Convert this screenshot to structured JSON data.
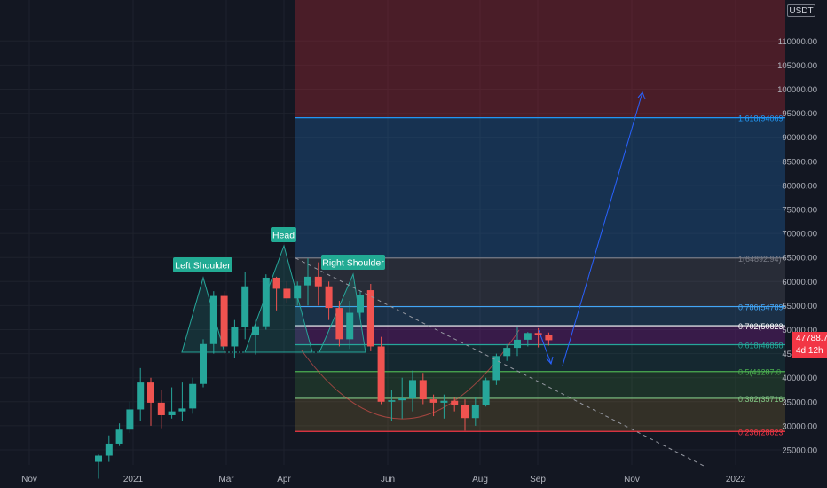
{
  "currency": "USDT",
  "last_price": "47788.75",
  "countdown": "4d 12h",
  "colors": {
    "background": "#131722",
    "up": "#26a69a",
    "down": "#ef5350",
    "text": "#b2b5be",
    "label_bg": "#22ab94"
  },
  "chart_data": {
    "type": "candlestick",
    "y_axis": {
      "min": 20000,
      "max": 115000,
      "step": 5000,
      "tick_labels": [
        "25000.00",
        "30000.00",
        "35000.00",
        "40000.00",
        "45000.00",
        "50000.00",
        "55000.00",
        "60000.00",
        "65000.00",
        "70000.00",
        "75000.00",
        "80000.00",
        "85000.00",
        "90000.00",
        "95000.00",
        "100000.00",
        "105000.00",
        "110000.00"
      ]
    },
    "x_axis": {
      "tick_labels": [
        "Nov",
        "2021",
        "Mar",
        "Apr",
        "Jun",
        "Aug",
        "Sep",
        "Nov",
        "2022"
      ]
    },
    "candles": [
      {
        "o": 22500,
        "h": 24000,
        "l": 19000,
        "c": 23800
      },
      {
        "o": 23800,
        "h": 28000,
        "l": 22500,
        "c": 26300
      },
      {
        "o": 26300,
        "h": 30500,
        "l": 25800,
        "c": 29200
      },
      {
        "o": 29200,
        "h": 35000,
        "l": 28500,
        "c": 33400
      },
      {
        "o": 33400,
        "h": 42000,
        "l": 31000,
        "c": 39000
      },
      {
        "o": 39000,
        "h": 40000,
        "l": 30000,
        "c": 34800
      },
      {
        "o": 34800,
        "h": 37500,
        "l": 29500,
        "c": 32200
      },
      {
        "o": 32200,
        "h": 38000,
        "l": 31500,
        "c": 33000
      },
      {
        "o": 33000,
        "h": 39000,
        "l": 31000,
        "c": 33600
      },
      {
        "o": 33600,
        "h": 40000,
        "l": 32500,
        "c": 38700
      },
      {
        "o": 38700,
        "h": 48000,
        "l": 38000,
        "c": 47000
      },
      {
        "o": 47000,
        "h": 58000,
        "l": 45000,
        "c": 57000
      },
      {
        "o": 57000,
        "h": 58000,
        "l": 45000,
        "c": 46500
      },
      {
        "o": 46500,
        "h": 52000,
        "l": 44000,
        "c": 50500
      },
      {
        "o": 50500,
        "h": 62000,
        "l": 48000,
        "c": 59000
      },
      {
        "o": 48800,
        "h": 52000,
        "l": 44800,
        "c": 50700
      },
      {
        "o": 50700,
        "h": 61500,
        "l": 50000,
        "c": 60800
      },
      {
        "o": 60800,
        "h": 61000,
        "l": 54000,
        "c": 58500
      },
      {
        "o": 58500,
        "h": 60000,
        "l": 55500,
        "c": 56500
      },
      {
        "o": 56500,
        "h": 60000,
        "l": 55000,
        "c": 59200
      },
      {
        "o": 59200,
        "h": 64800,
        "l": 55000,
        "c": 61000
      },
      {
        "o": 61000,
        "h": 64000,
        "l": 55000,
        "c": 59000
      },
      {
        "o": 59000,
        "h": 60000,
        "l": 52000,
        "c": 54500
      },
      {
        "o": 54500,
        "h": 56000,
        "l": 46500,
        "c": 48000
      },
      {
        "o": 48000,
        "h": 56000,
        "l": 46000,
        "c": 53500
      },
      {
        "o": 53500,
        "h": 58000,
        "l": 52000,
        "c": 57200
      },
      {
        "o": 58200,
        "h": 59500,
        "l": 45500,
        "c": 46500
      },
      {
        "o": 46500,
        "h": 48500,
        "l": 34500,
        "c": 35000
      },
      {
        "o": 35000,
        "h": 37500,
        "l": 31000,
        "c": 35300
      },
      {
        "o": 35300,
        "h": 40000,
        "l": 31500,
        "c": 35700
      },
      {
        "o": 35700,
        "h": 41500,
        "l": 33000,
        "c": 39500
      },
      {
        "o": 39500,
        "h": 41000,
        "l": 34500,
        "c": 35500
      },
      {
        "o": 35500,
        "h": 36500,
        "l": 32000,
        "c": 34800
      },
      {
        "o": 34800,
        "h": 36500,
        "l": 31500,
        "c": 35200
      },
      {
        "o": 35200,
        "h": 36000,
        "l": 33000,
        "c": 34300
      },
      {
        "o": 34300,
        "h": 35500,
        "l": 29000,
        "c": 31600
      },
      {
        "o": 31600,
        "h": 36000,
        "l": 30000,
        "c": 34300
      },
      {
        "o": 34300,
        "h": 40000,
        "l": 34000,
        "c": 39500
      },
      {
        "o": 39500,
        "h": 45000,
        "l": 38500,
        "c": 44500
      },
      {
        "o": 44500,
        "h": 47000,
        "l": 43500,
        "c": 46200
      },
      {
        "o": 46200,
        "h": 50500,
        "l": 44500,
        "c": 47900
      },
      {
        "o": 47900,
        "h": 49500,
        "l": 46500,
        "c": 49300
      },
      {
        "o": 49300,
        "h": 50300,
        "l": 46300,
        "c": 48900
      },
      {
        "o": 48900,
        "h": 49400,
        "l": 46700,
        "c": 47800
      }
    ],
    "fib_levels": [
      {
        "ratio": "1.618",
        "price": "94069",
        "label": "1.618(94069",
        "value": 94069,
        "color": "#2196f3"
      },
      {
        "ratio": "1",
        "price": "64892.94",
        "label": "1(64892.94)",
        "value": 64892.94,
        "color": "#787b86"
      },
      {
        "ratio": "0.786",
        "price": "54789",
        "label": "0.786(54789",
        "value": 54789,
        "color": "#42a5f5"
      },
      {
        "ratio": "0.702",
        "price": "50823",
        "label": "0.702(50823",
        "value": 50823,
        "color": "#ffffff"
      },
      {
        "ratio": "0.618",
        "price": "46858",
        "label": "0.618(46858",
        "value": 46858,
        "color": "#26a69a"
      },
      {
        "ratio": "0.5",
        "price": "41287.0",
        "label": "0.5(41287.0",
        "value": 41287.0,
        "color": "#4caf50"
      },
      {
        "ratio": "0.382",
        "price": "35716",
        "label": "0.382(35716",
        "value": 35716,
        "color": "#81c784"
      },
      {
        "ratio": "0.236",
        "price": "28823",
        "label": "0.236(28823",
        "value": 28823,
        "color": "#f23645"
      }
    ],
    "annotations": [
      "Head",
      "Left Shoulder",
      "Right Shoulder"
    ]
  }
}
